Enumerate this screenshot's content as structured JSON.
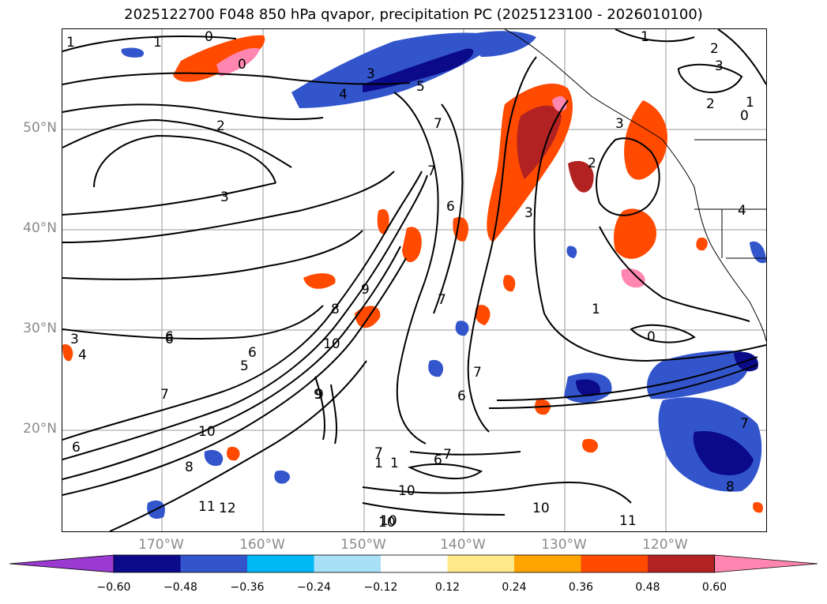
{
  "title": "2025122700 F048 850 hPa qvapor, precipitation PC (2025123100 - 2026010100)",
  "lat_labels": [
    "50°N",
    "40°N",
    "30°N",
    "20°N"
  ],
  "lon_labels": [
    "170°W",
    "160°W",
    "150°W",
    "140°W",
    "130°W",
    "120°W"
  ],
  "colorbar": {
    "ticks": [
      "−0.60",
      "−0.48",
      "−0.36",
      "−0.24",
      "−0.12",
      "0.12",
      "0.24",
      "0.36",
      "0.48",
      "0.60"
    ],
    "colors": [
      "#9b3ad1",
      "#0b0b8a",
      "#3355cc",
      "#00b8f5",
      "#a8e0f7",
      "#ffffff",
      "#ffe88a",
      "#ffa400",
      "#ff4a00",
      "#b22222",
      "#ff86b0"
    ]
  },
  "contour_labels": [
    {
      "text": "1"
    },
    {
      "text": "0"
    },
    {
      "text": "0"
    },
    {
      "text": "1"
    },
    {
      "text": "2"
    },
    {
      "text": "3"
    },
    {
      "text": "4"
    },
    {
      "text": "5"
    },
    {
      "text": "7"
    },
    {
      "text": "7"
    },
    {
      "text": "6"
    },
    {
      "text": "1"
    },
    {
      "text": "2"
    },
    {
      "text": "3"
    },
    {
      "text": "2"
    },
    {
      "text": "1"
    },
    {
      "text": "0"
    },
    {
      "text": "3"
    },
    {
      "text": "2"
    },
    {
      "text": "3"
    },
    {
      "text": "4"
    },
    {
      "text": "3"
    },
    {
      "text": "8"
    },
    {
      "text": "9"
    },
    {
      "text": "10"
    },
    {
      "text": "6"
    },
    {
      "text": "5"
    },
    {
      "text": "4"
    },
    {
      "text": "3"
    },
    {
      "text": "6"
    },
    {
      "text": "7"
    },
    {
      "text": "9"
    },
    {
      "text": "10"
    },
    {
      "text": "8"
    },
    {
      "text": "6"
    },
    {
      "text": "11"
    },
    {
      "text": "12"
    },
    {
      "text": "10"
    },
    {
      "text": "10"
    },
    {
      "text": "6"
    },
    {
      "text": "7"
    },
    {
      "text": "10"
    },
    {
      "text": "10"
    },
    {
      "text": "11"
    },
    {
      "text": "1"
    },
    {
      "text": "0"
    },
    {
      "text": "7"
    },
    {
      "text": "6"
    },
    {
      "text": "7"
    },
    {
      "text": "1"
    },
    {
      "text": "9"
    },
    {
      "text": "7"
    },
    {
      "text": "6"
    },
    {
      "text": "7"
    },
    {
      "text": "1"
    },
    {
      "text": "8"
    }
  ]
}
